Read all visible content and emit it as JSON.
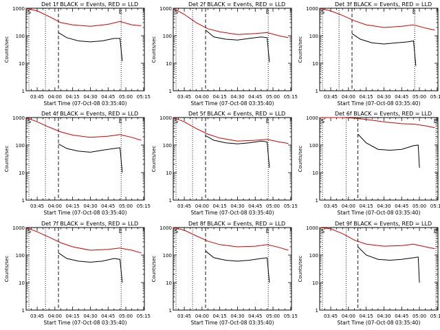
{
  "figure": {
    "ylabel": "Counts/sec",
    "xlabel": "Start Time (07-Oct-08 03:35:40)",
    "title_suffix": "BLACK = Events, RED = LLD",
    "y_ticks": [
      "1",
      "10",
      "100",
      "1000"
    ],
    "x_ticks_default": [
      "03:45",
      "04:00",
      "04:15",
      "04:30",
      "04:45",
      "05:00",
      "05:15"
    ],
    "x_ticks_alt": [
      "03:45",
      "04:00",
      "04:15",
      "04:30",
      "04:45",
      "05:00",
      "05:15"
    ]
  },
  "colors": {
    "events": "#000000",
    "lld": "#d00000"
  },
  "chart_data": [
    {
      "type": "line",
      "title": "Det 1f BLACK = Events, RED = LLD",
      "xlabel": "Start Time (07-Oct-08 03:35:40)",
      "ylabel": "Counts/sec",
      "ylog": true,
      "ylim": [
        1,
        1000
      ],
      "xlim": [
        "03:35:40",
        "05:15:40"
      ],
      "x_ticks": [
        "03:45",
        "04:00",
        "04:15",
        "04:30",
        "04:45",
        "05:00",
        "05:15"
      ],
      "markers": [
        "S",
        "E"
      ],
      "series": [
        {
          "name": "Events",
          "x": [
            "04:03",
            "04:10",
            "04:20",
            "04:30",
            "04:40",
            "04:50",
            "04:55",
            "04:57"
          ],
          "y": [
            130,
            85,
            65,
            60,
            65,
            80,
            80,
            12
          ]
        },
        {
          "name": "LLD",
          "x": [
            "03:35:40",
            "03:45",
            "03:55",
            "04:05",
            "04:15",
            "04:30",
            "04:45",
            "04:55",
            "05:05",
            "05:13"
          ],
          "y": [
            1000,
            800,
            500,
            300,
            250,
            220,
            260,
            330,
            250,
            230
          ]
        }
      ]
    },
    {
      "type": "line",
      "title": "Det 2f BLACK = Events, RED = LLD",
      "xlabel": "Start Time (07-Oct-08 03:35:40)",
      "ylabel": "Counts/sec",
      "ylog": true,
      "ylim": [
        1,
        1000
      ],
      "xlim": [
        "03:35:40",
        "05:15:40"
      ],
      "x_ticks": [
        "03:45",
        "04:00",
        "04:15",
        "04:30",
        "04:45",
        "05:00",
        "05:15"
      ],
      "markers": [
        "S",
        "E"
      ],
      "series": [
        {
          "name": "Events",
          "x": [
            "04:03",
            "04:10",
            "04:20",
            "04:30",
            "04:40",
            "04:50",
            "04:55",
            "04:57"
          ],
          "y": [
            160,
            90,
            75,
            70,
            80,
            90,
            85,
            11
          ]
        },
        {
          "name": "LLD",
          "x": [
            "03:35:40",
            "03:45",
            "03:55",
            "04:05",
            "04:15",
            "04:30",
            "04:45",
            "04:55",
            "05:05",
            "05:13"
          ],
          "y": [
            1000,
            600,
            300,
            180,
            140,
            110,
            120,
            130,
            100,
            85
          ]
        }
      ]
    },
    {
      "type": "line",
      "title": "Det 3f BLACK = Events, RED = LLD",
      "xlabel": "Start Time (07-Oct-08 03:35:40)",
      "ylabel": "Counts/sec",
      "ylog": true,
      "ylim": [
        1,
        1000
      ],
      "xlim": [
        "03:35:40",
        "05:15:40"
      ],
      "x_ticks": [
        "03:45",
        "04:00",
        "04:15",
        "04:30",
        "04:45",
        "05:00",
        "05:15"
      ],
      "markers": [
        "S",
        "E"
      ],
      "series": [
        {
          "name": "Events",
          "x": [
            "04:03",
            "04:10",
            "04:20",
            "04:30",
            "04:40",
            "04:50",
            "04:55",
            "04:57"
          ],
          "y": [
            120,
            75,
            55,
            50,
            55,
            60,
            65,
            8
          ]
        },
        {
          "name": "LLD",
          "x": [
            "03:35:40",
            "03:45",
            "03:55",
            "04:05",
            "04:15",
            "04:30",
            "04:45",
            "04:55",
            "05:05",
            "05:13"
          ],
          "y": [
            1000,
            800,
            550,
            350,
            250,
            200,
            220,
            250,
            190,
            160
          ]
        }
      ]
    },
    {
      "type": "line",
      "title": "Det 4f BLACK = Events, RED = LLD",
      "xlabel": "Start Time (07-Oct-08 03:35:40)",
      "ylabel": "Counts/sec",
      "ylog": true,
      "ylim": [
        1,
        1000
      ],
      "xlim": [
        "03:35:40",
        "05:15:40"
      ],
      "x_ticks": [
        "03:45",
        "04:00",
        "04:15",
        "04:30",
        "04:45",
        "05:00",
        "05:15"
      ],
      "markers": [
        "S",
        "E"
      ],
      "series": [
        {
          "name": "Events",
          "x": [
            "04:03",
            "04:10",
            "04:20",
            "04:30",
            "04:40",
            "04:50",
            "04:55",
            "04:57"
          ],
          "y": [
            110,
            75,
            60,
            55,
            65,
            75,
            80,
            10
          ]
        },
        {
          "name": "LLD",
          "x": [
            "03:35:40",
            "03:45",
            "03:55",
            "04:05",
            "04:15",
            "04:30",
            "04:45",
            "04:55",
            "05:05",
            "05:13"
          ],
          "y": [
            1000,
            700,
            450,
            300,
            230,
            190,
            210,
            240,
            190,
            150
          ]
        }
      ]
    },
    {
      "type": "line",
      "title": "Det 5f BLACK = Events, RED = LLD",
      "xlabel": "Start Time (07-Oct-08 03:35:40)",
      "ylabel": "Counts/sec",
      "ylog": true,
      "ylim": [
        1,
        1000
      ],
      "xlim": [
        "03:35:40",
        "05:15:40"
      ],
      "x_ticks": [
        "03:45",
        "04:00",
        "04:15",
        "04:30",
        "04:45",
        "05:00",
        "05:15"
      ],
      "markers": [
        "S",
        "E"
      ],
      "series": [
        {
          "name": "Events",
          "x": [
            "04:03",
            "04:10",
            "04:20",
            "04:30",
            "04:40",
            "04:50",
            "04:55",
            "04:57"
          ],
          "y": [
            220,
            150,
            120,
            110,
            120,
            140,
            130,
            15
          ]
        },
        {
          "name": "LLD",
          "x": [
            "03:35:40",
            "03:45",
            "03:55",
            "04:05",
            "04:15",
            "04:30",
            "04:45",
            "04:55",
            "05:05",
            "05:13"
          ],
          "y": [
            1000,
            700,
            400,
            250,
            180,
            140,
            150,
            160,
            130,
            115
          ]
        }
      ]
    },
    {
      "type": "line",
      "title": "Det 6f BLACK = Events, RED = LLD",
      "xlabel": "Start Time (07-Oct-08 03:35:40)",
      "ylabel": "Counts/sec",
      "ylog": true,
      "ylim": [
        1,
        1000
      ],
      "xlim": [
        "03:35:40",
        "05:15:40"
      ],
      "x_ticks": [
        "03:45",
        "04:00",
        "04:15",
        "04:30",
        "04:45",
        "05:00",
        "05:15"
      ],
      "markers": [
        "S",
        "E"
      ],
      "series": [
        {
          "name": "Events",
          "x": [
            "04:08",
            "04:15",
            "04:25",
            "04:35",
            "04:45",
            "04:55",
            "04:59",
            "05:00"
          ],
          "y": [
            250,
            120,
            70,
            65,
            70,
            95,
            100,
            15
          ]
        },
        {
          "name": "LLD",
          "x": [
            "03:35:40",
            "03:45",
            "03:55",
            "04:05",
            "04:15",
            "04:30",
            "04:45",
            "04:55",
            "05:05",
            "05:13"
          ],
          "y": [
            1000,
            1000,
            1000,
            950,
            850,
            700,
            600,
            580,
            500,
            430
          ]
        }
      ]
    },
    {
      "type": "line",
      "title": "Det 7f BLACK = Events, RED = LLD",
      "xlabel": "Start Time (07-Oct-08 03:35:40)",
      "ylabel": "Counts/sec",
      "ylog": true,
      "ylim": [
        1,
        1000
      ],
      "xlim": [
        "03:35:40",
        "05:15:40"
      ],
      "x_ticks": [
        "03:45",
        "04:00",
        "04:15",
        "04:30",
        "04:45",
        "05:00",
        "05:15"
      ],
      "markers": [
        "S",
        "E"
      ],
      "series": [
        {
          "name": "Events",
          "x": [
            "04:03",
            "04:10",
            "04:20",
            "04:30",
            "04:40",
            "04:50",
            "04:55",
            "04:57"
          ],
          "y": [
            120,
            75,
            60,
            55,
            60,
            75,
            70,
            10
          ]
        },
        {
          "name": "LLD",
          "x": [
            "03:35:40",
            "03:45",
            "03:55",
            "04:05",
            "04:15",
            "04:30",
            "04:45",
            "04:55",
            "05:05",
            "05:13"
          ],
          "y": [
            1000,
            700,
            450,
            280,
            200,
            150,
            160,
            180,
            150,
            120
          ]
        }
      ]
    },
    {
      "type": "line",
      "title": "Det 8f BLACK = Events, RED = LLD",
      "xlabel": "Start Time (07-Oct-08 03:35:40)",
      "ylabel": "Counts/sec",
      "ylog": true,
      "ylim": [
        1,
        1000
      ],
      "xlim": [
        "03:35:40",
        "05:15:40"
      ],
      "x_ticks": [
        "03:45",
        "04:00",
        "04:15",
        "04:30",
        "04:45",
        "05:00",
        "05:15"
      ],
      "markers": [
        "S",
        "E"
      ],
      "series": [
        {
          "name": "Events",
          "x": [
            "04:03",
            "04:10",
            "04:20",
            "04:30",
            "04:40",
            "04:50",
            "04:55",
            "04:57"
          ],
          "y": [
            140,
            80,
            65,
            60,
            65,
            75,
            80,
            10
          ]
        },
        {
          "name": "LLD",
          "x": [
            "03:35:40",
            "03:45",
            "03:55",
            "04:05",
            "04:15",
            "04:30",
            "04:45",
            "04:55",
            "05:05",
            "05:13"
          ],
          "y": [
            1000,
            800,
            500,
            320,
            240,
            200,
            210,
            240,
            190,
            150
          ]
        }
      ]
    },
    {
      "type": "line",
      "title": "Det 9f BLACK = Events, RED = LLD",
      "xlabel": "Start Time (07-Oct-08 03:35:40)",
      "ylabel": "Counts/sec",
      "ylog": true,
      "ylim": [
        1,
        1000
      ],
      "xlim": [
        "03:35:40",
        "05:15:40"
      ],
      "x_ticks": [
        "03:45",
        "04:00",
        "04:15",
        "04:30",
        "04:45",
        "05:00",
        "05:15"
      ],
      "markers": [
        "S",
        "E"
      ],
      "series": [
        {
          "name": "Events",
          "x": [
            "04:08",
            "04:15",
            "04:25",
            "04:35",
            "04:45",
            "04:55",
            "04:59",
            "05:00"
          ],
          "y": [
            200,
            100,
            70,
            65,
            70,
            80,
            85,
            10
          ]
        },
        {
          "name": "LLD",
          "x": [
            "03:35:40",
            "03:45",
            "03:55",
            "04:05",
            "04:15",
            "04:30",
            "04:45",
            "04:55",
            "05:05",
            "05:13"
          ],
          "y": [
            1000,
            900,
            600,
            350,
            250,
            210,
            220,
            250,
            200,
            170
          ]
        }
      ]
    }
  ]
}
